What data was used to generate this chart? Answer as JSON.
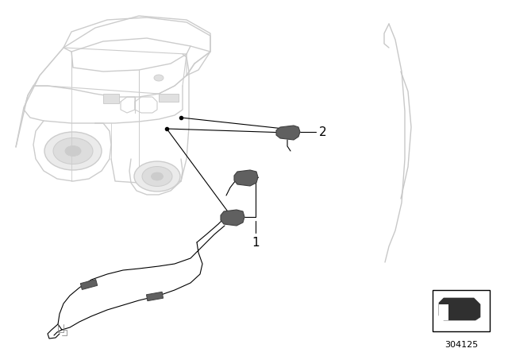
{
  "background_color": "#ffffff",
  "line_color": "#000000",
  "part_color": "#606060",
  "car_outline_color": "#cccccc",
  "part_number": "304125",
  "label_1": "1",
  "label_2": "2",
  "figsize": [
    6.4,
    4.48
  ],
  "dpi": 100
}
